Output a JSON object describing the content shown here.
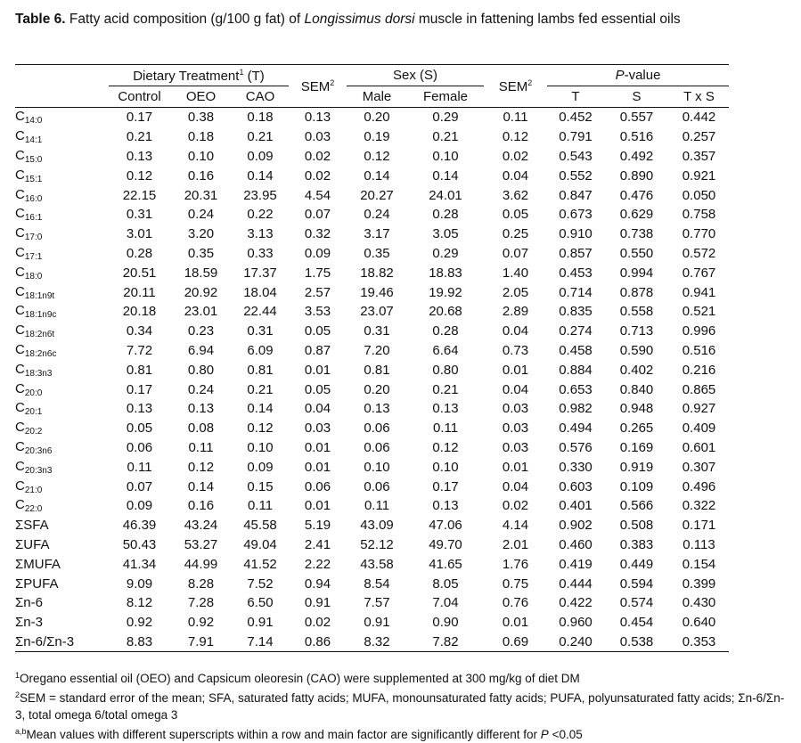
{
  "caption": {
    "label": "Table 6.",
    "text_pre": " Fatty acid composition (g/100 g fat) of ",
    "species": "Longissimus dorsi",
    "text_post": " muscle in fattening lambs fed essential oils"
  },
  "header": {
    "dietary_group": "Dietary Treatment",
    "dietary_sup": "1",
    "dietary_abbr": " (T)",
    "sem": "SEM",
    "sem_sup": "2",
    "sex_group": "Sex (S)",
    "pvalue_italic": "P",
    "pvalue_rest": "-value",
    "cols": [
      "Control",
      "OEO",
      "CAO",
      "Male",
      "Female",
      "T",
      "S",
      "T x S"
    ]
  },
  "rows": [
    {
      "base": "C",
      "sub": "14:0",
      "values": [
        "0.17",
        "0.38",
        "0.18",
        "0.13",
        "0.20",
        "0.29",
        "0.11",
        "0.452",
        "0.557",
        "0.442"
      ]
    },
    {
      "base": "C",
      "sub": "14:1",
      "values": [
        "0.21",
        "0.18",
        "0.21",
        "0.03",
        "0.19",
        "0.21",
        "0.12",
        "0.791",
        "0.516",
        "0.257"
      ]
    },
    {
      "base": "C",
      "sub": "15:0",
      "values": [
        "0.13",
        "0.10",
        "0.09",
        "0.02",
        "0.12",
        "0.10",
        "0.02",
        "0.543",
        "0.492",
        "0.357"
      ]
    },
    {
      "base": "C",
      "sub": "15:1",
      "values": [
        "0.12",
        "0.16",
        "0.14",
        "0.02",
        "0.14",
        "0.14",
        "0.04",
        "0.552",
        "0.890",
        "0.921"
      ]
    },
    {
      "base": "C",
      "sub": "16:0",
      "values": [
        "22.15",
        "20.31",
        "23.95",
        "4.54",
        "20.27",
        "24.01",
        "3.62",
        "0.847",
        "0.476",
        "0.050"
      ]
    },
    {
      "base": "C",
      "sub": "16:1",
      "values": [
        "0.31",
        "0.24",
        "0.22",
        "0.07",
        "0.24",
        "0.28",
        "0.05",
        "0.673",
        "0.629",
        "0.758"
      ]
    },
    {
      "base": "C",
      "sub": "17:0",
      "values": [
        "3.01",
        "3.20",
        "3.13",
        "0.32",
        "3.17",
        "3.05",
        "0.25",
        "0.910",
        "0.738",
        "0.770"
      ]
    },
    {
      "base": "C",
      "sub": "17:1",
      "values": [
        "0.28",
        "0.35",
        "0.33",
        "0.09",
        "0.35",
        "0.29",
        "0.07",
        "0.857",
        "0.550",
        "0.572"
      ]
    },
    {
      "base": "C",
      "sub": "18:0",
      "values": [
        "20.51",
        "18.59",
        "17.37",
        "1.75",
        "18.82",
        "18.83",
        "1.40",
        "0.453",
        "0.994",
        "0.767"
      ]
    },
    {
      "base": "C",
      "sub": "18:1n9t",
      "values": [
        "20.11",
        "20.92",
        "18.04",
        "2.57",
        "19.46",
        "19.92",
        "2.05",
        "0.714",
        "0.878",
        "0.941"
      ]
    },
    {
      "base": "C",
      "sub": "18:1n9c",
      "values": [
        "20.18",
        "23.01",
        "22.44",
        "3.53",
        "23.07",
        "20.68",
        "2.89",
        "0.835",
        "0.558",
        "0.521"
      ]
    },
    {
      "base": "C",
      "sub": "18:2n6t",
      "values": [
        "0.34",
        "0.23",
        "0.31",
        "0.05",
        "0.31",
        "0.28",
        "0.04",
        "0.274",
        "0.713",
        "0.996"
      ]
    },
    {
      "base": "C",
      "sub": "18:2n6c",
      "values": [
        "7.72",
        "6.94",
        "6.09",
        "0.87",
        "7.20",
        "6.64",
        "0.73",
        "0.458",
        "0.590",
        "0.516"
      ]
    },
    {
      "base": "C",
      "sub": "18:3n3",
      "values": [
        "0.81",
        "0.80",
        "0.81",
        "0.01",
        "0.81",
        "0.80",
        "0.01",
        "0.884",
        "0.402",
        "0.216"
      ]
    },
    {
      "base": "C",
      "sub": "20:0",
      "values": [
        "0.17",
        "0.24",
        "0.21",
        "0.05",
        "0.20",
        "0.21",
        "0.04",
        "0.653",
        "0.840",
        "0.865"
      ]
    },
    {
      "base": "C",
      "sub": "20:1",
      "values": [
        "0.13",
        "0.13",
        "0.14",
        "0.04",
        "0.13",
        "0.13",
        "0.03",
        "0.982",
        "0.948",
        "0.927"
      ]
    },
    {
      "base": "C",
      "sub": "20:2",
      "values": [
        "0.05",
        "0.08",
        "0.12",
        "0.03",
        "0.06",
        "0.11",
        "0.03",
        "0.494",
        "0.265",
        "0.409"
      ]
    },
    {
      "base": "C",
      "sub": "20:3n6",
      "values": [
        "0.06",
        "0.11",
        "0.10",
        "0.01",
        "0.06",
        "0.12",
        "0.03",
        "0.576",
        "0.169",
        "0.601"
      ]
    },
    {
      "base": "C",
      "sub": "20:3n3",
      "values": [
        "0.11",
        "0.12",
        "0.09",
        "0.01",
        "0.10",
        "0.10",
        "0.01",
        "0.330",
        "0.919",
        "0.307"
      ]
    },
    {
      "base": "C",
      "sub": "21:0",
      "values": [
        "0.07",
        "0.14",
        "0.15",
        "0.06",
        "0.06",
        "0.17",
        "0.04",
        "0.603",
        "0.109",
        "0.496"
      ]
    },
    {
      "base": "C",
      "sub": "22:0",
      "values": [
        "0.09",
        "0.16",
        "0.11",
        "0.01",
        "0.11",
        "0.13",
        "0.02",
        "0.401",
        "0.566",
        "0.322"
      ]
    },
    {
      "base": "ΣSFA",
      "sub": "",
      "values": [
        "46.39",
        "43.24",
        "45.58",
        "5.19",
        "43.09",
        "47.06",
        "4.14",
        "0.902",
        "0.508",
        "0.171"
      ]
    },
    {
      "base": "ΣUFA",
      "sub": "",
      "values": [
        "50.43",
        "53.27",
        "49.04",
        "2.41",
        "52.12",
        "49.70",
        "2.01",
        "0.460",
        "0.383",
        "0.113"
      ]
    },
    {
      "base": "ΣMUFA",
      "sub": "",
      "values": [
        "41.34",
        "44.99",
        "41.52",
        "2.22",
        "43.58",
        "41.65",
        "1.76",
        "0.419",
        "0.449",
        "0.154"
      ]
    },
    {
      "base": "ΣPUFA",
      "sub": "",
      "values": [
        "9.09",
        "8.28",
        "7.52",
        "0.94",
        "8.54",
        "8.05",
        "0.75",
        "0.444",
        "0.594",
        "0.399"
      ]
    },
    {
      "base": "Σn-6",
      "sub": "",
      "values": [
        "8.12",
        "7.28",
        "6.50",
        "0.91",
        "7.57",
        "7.04",
        "0.76",
        "0.422",
        "0.574",
        "0.430"
      ]
    },
    {
      "base": "Σn-3",
      "sub": "",
      "values": [
        "0.92",
        "0.92",
        "0.91",
        "0.02",
        "0.91",
        "0.90",
        "0.01",
        "0.960",
        "0.454",
        "0.640"
      ]
    },
    {
      "base": "Σn-6/Σn-3",
      "sub": "",
      "values": [
        "8.83",
        "7.91",
        "7.14",
        "0.86",
        "8.32",
        "7.82",
        "0.69",
        "0.240",
        "0.538",
        "0.353"
      ]
    }
  ],
  "footnotes": {
    "fn1_sup": "1",
    "fn1_text": "Oregano essential oil (OEO) and Capsicum oleoresin (CAO) were supplemented at 300 mg/kg of diet DM",
    "fn2_sup": "2",
    "fn2_text": "SEM = standard error of the mean; SFA, saturated fatty acids; MUFA, monounsaturated fatty acids; PUFA, polyunsaturated fatty acids; Σn-6/Σn-3, total omega 6/total omega 3",
    "fn3_sup": "a,b",
    "fn3_text_pre": "Mean values with different superscripts within a row and main factor are significantly different for ",
    "fn3_italic": "P",
    "fn3_text_post": " <0.05"
  }
}
